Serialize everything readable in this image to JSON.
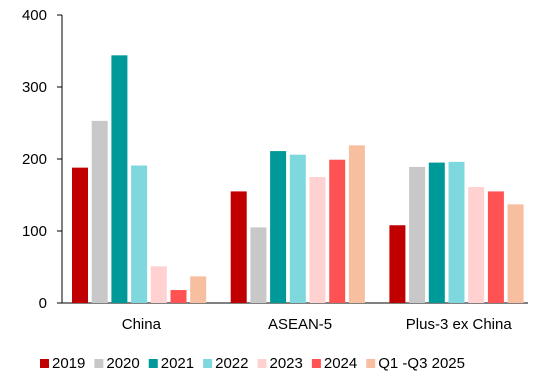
{
  "chart_data": {
    "type": "bar",
    "title": "",
    "xlabel": "",
    "ylabel": "",
    "categories": [
      "China",
      "ASEAN-5",
      "Plus-3 ex China"
    ],
    "ylim": [
      0,
      400
    ],
    "yticks": [
      0,
      100,
      200,
      300,
      400
    ],
    "grid": false,
    "legend_position": "bottom",
    "series": [
      {
        "name": "2019",
        "color": "#c00000",
        "values": [
          188,
          155,
          108
        ]
      },
      {
        "name": "2020",
        "color": "#c8c8c8",
        "values": [
          253,
          105,
          189
        ]
      },
      {
        "name": "2021",
        "color": "#009999",
        "values": [
          344,
          211,
          195
        ]
      },
      {
        "name": "2022",
        "color": "#7fd8de",
        "values": [
          191,
          206,
          196
        ]
      },
      {
        "name": "2023",
        "color": "#ffd1d1",
        "values": [
          51,
          175,
          161
        ]
      },
      {
        "name": "2024",
        "color": "#ff5353",
        "values": [
          18,
          199,
          155
        ]
      },
      {
        "name": "Q1 -Q3 2025",
        "color": "#f7bfa0",
        "values": [
          37,
          219,
          137
        ]
      }
    ]
  }
}
